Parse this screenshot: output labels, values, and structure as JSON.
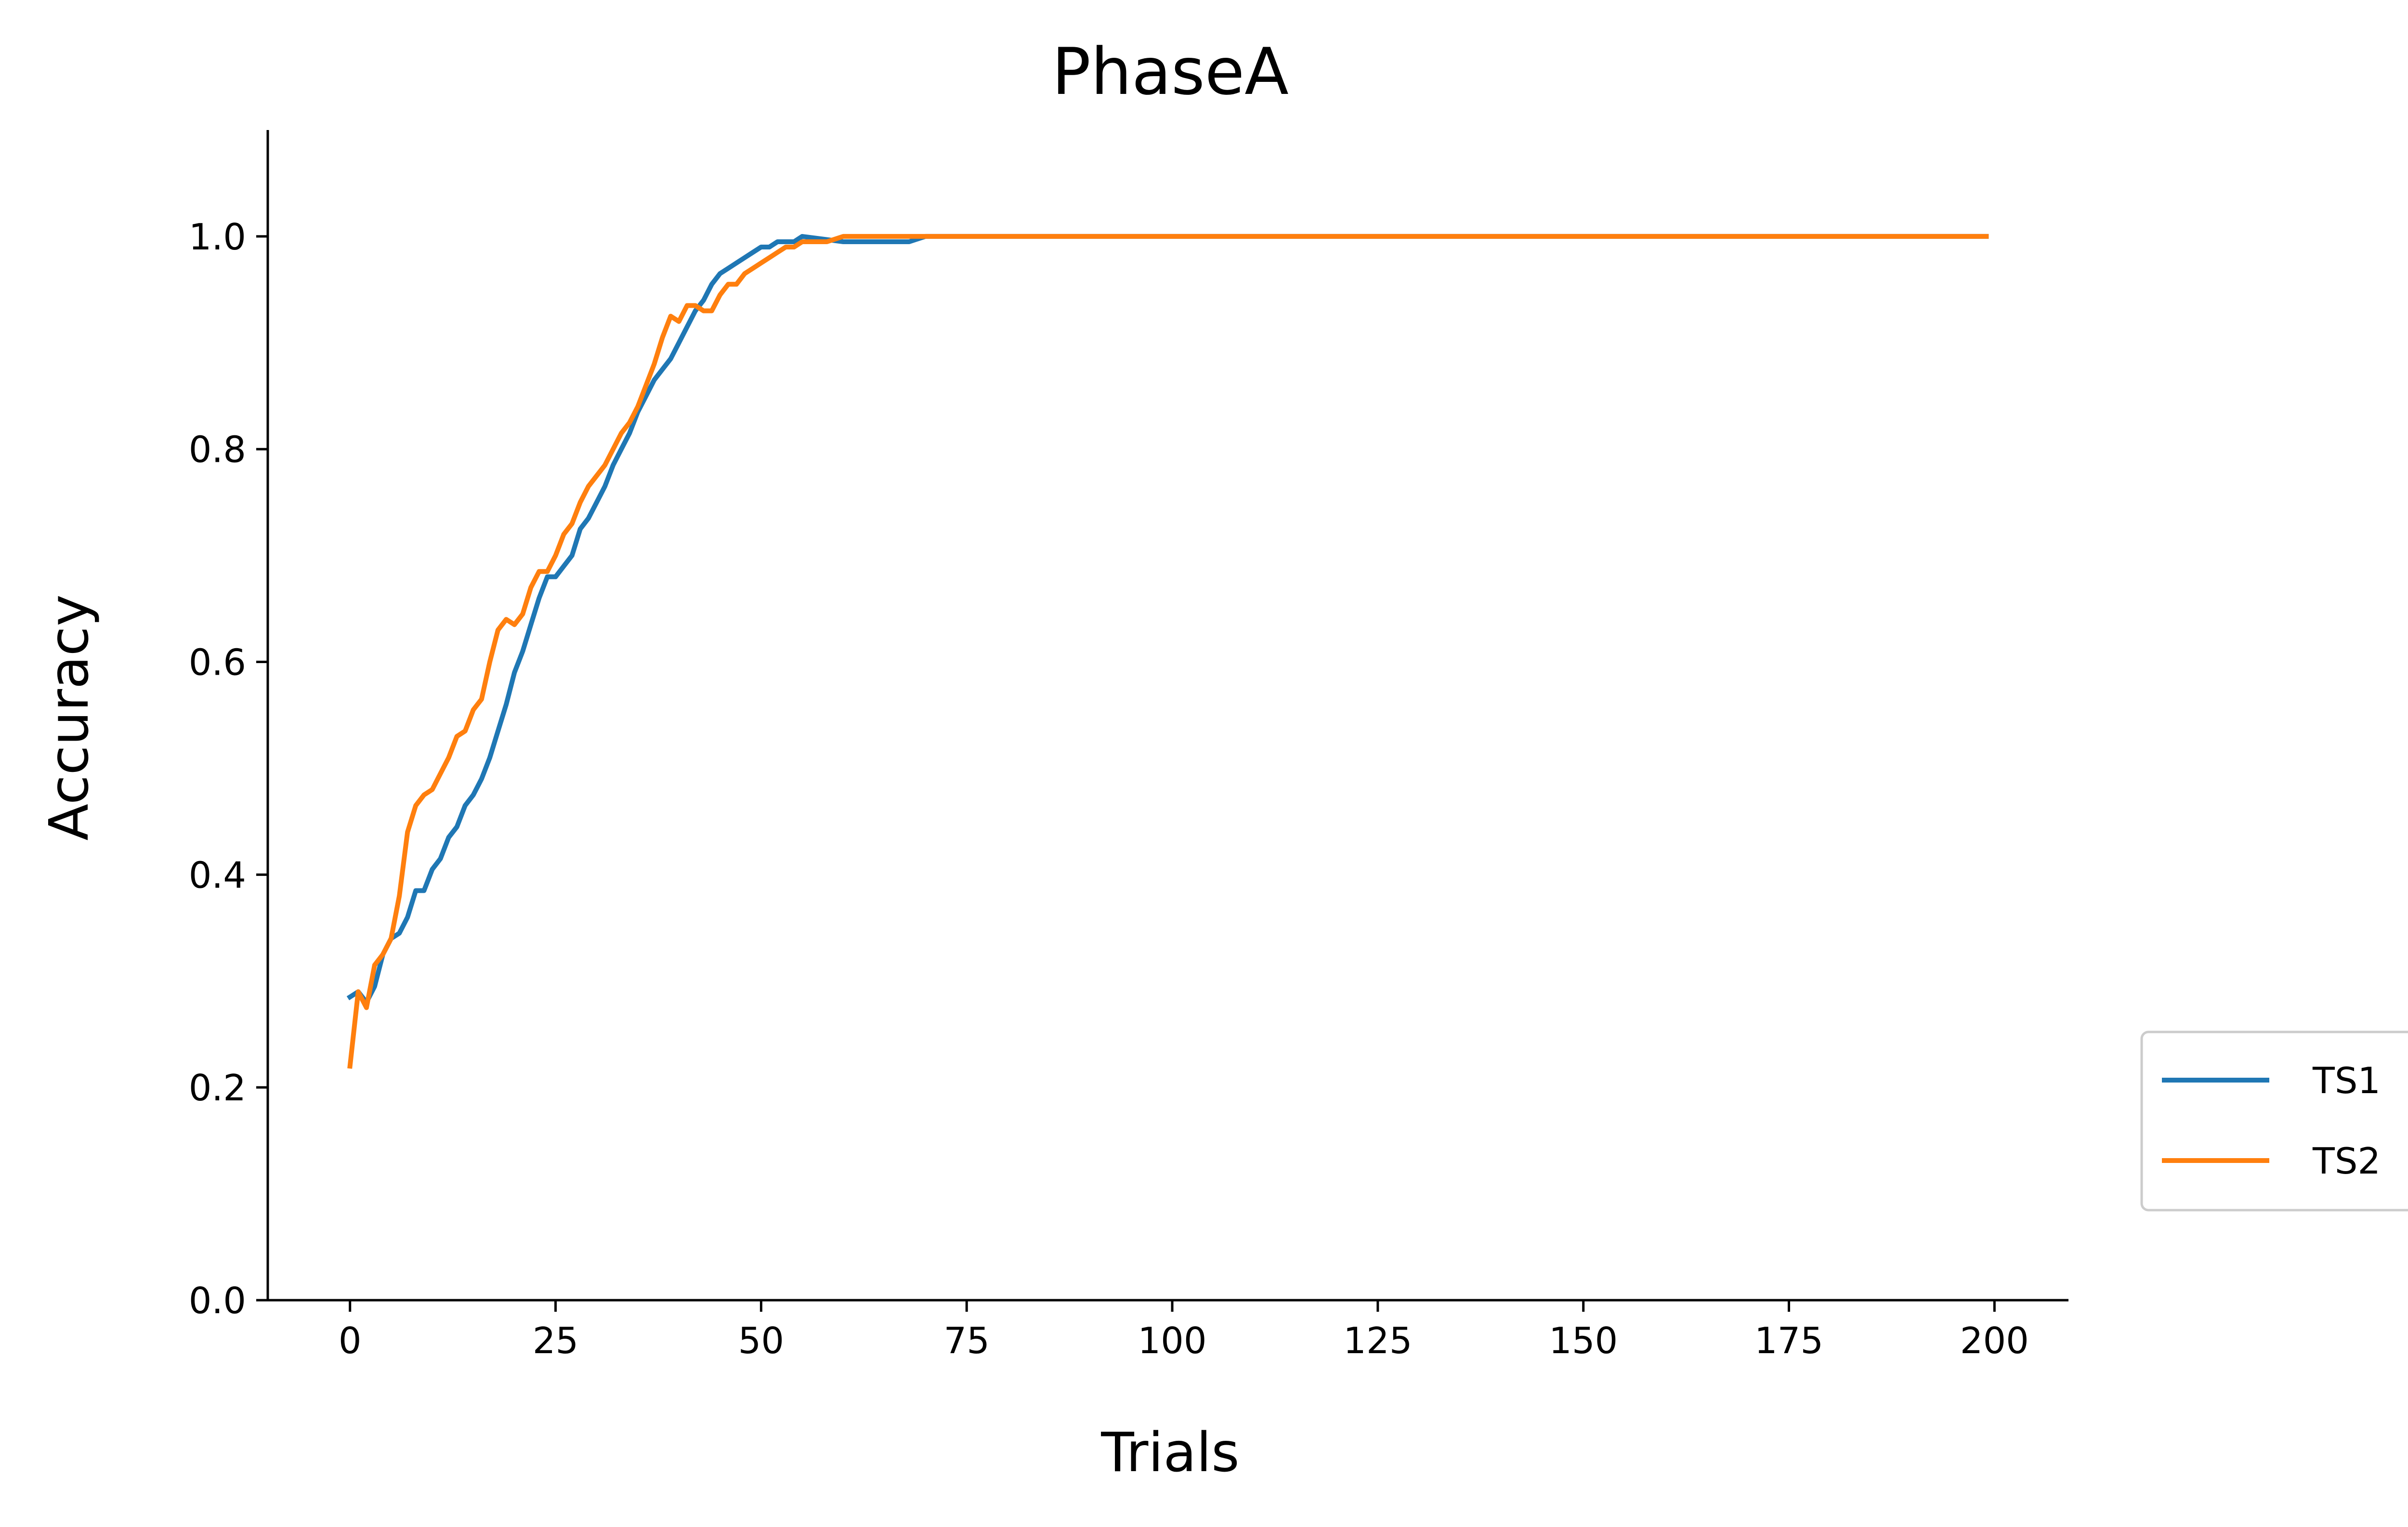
{
  "chart_data": {
    "type": "line",
    "title": "PhaseA",
    "xlabel": "Trials",
    "ylabel": "Accuracy",
    "xlim": [
      -10,
      209
    ],
    "ylim": [
      0,
      1.1
    ],
    "xticks": [
      0,
      25,
      50,
      75,
      100,
      125,
      150,
      175,
      200
    ],
    "yticks": [
      0.0,
      0.2,
      0.4,
      0.6,
      0.8,
      1.0
    ],
    "ytick_labels": [
      "0.0",
      "0.2",
      "0.4",
      "0.6",
      "0.8",
      "1.0"
    ],
    "grid": false,
    "legend_position": "right-lower, outside",
    "series": [
      {
        "name": "TS1",
        "color": "#1f77b4",
        "points": [
          [
            0,
            0.285
          ],
          [
            1,
            0.29
          ],
          [
            2,
            0.28
          ],
          [
            3,
            0.295
          ],
          [
            4,
            0.325
          ],
          [
            5,
            0.34
          ],
          [
            6,
            0.345
          ],
          [
            7,
            0.36
          ],
          [
            8,
            0.385
          ],
          [
            9,
            0.385
          ],
          [
            10,
            0.405
          ],
          [
            11,
            0.415
          ],
          [
            12,
            0.435
          ],
          [
            13,
            0.445
          ],
          [
            14,
            0.465
          ],
          [
            15,
            0.475
          ],
          [
            16,
            0.49
          ],
          [
            17,
            0.51
          ],
          [
            18,
            0.535
          ],
          [
            19,
            0.56
          ],
          [
            20,
            0.59
          ],
          [
            21,
            0.61
          ],
          [
            22,
            0.635
          ],
          [
            23,
            0.66
          ],
          [
            24,
            0.68
          ],
          [
            25,
            0.68
          ],
          [
            26,
            0.69
          ],
          [
            27,
            0.7
          ],
          [
            28,
            0.725
          ],
          [
            29,
            0.735
          ],
          [
            30,
            0.75
          ],
          [
            31,
            0.765
          ],
          [
            32,
            0.785
          ],
          [
            33,
            0.8
          ],
          [
            34,
            0.815
          ],
          [
            35,
            0.835
          ],
          [
            36,
            0.85
          ],
          [
            37,
            0.865
          ],
          [
            38,
            0.875
          ],
          [
            39,
            0.885
          ],
          [
            40,
            0.9
          ],
          [
            41,
            0.915
          ],
          [
            42,
            0.93
          ],
          [
            43,
            0.94
          ],
          [
            44,
            0.955
          ],
          [
            45,
            0.965
          ],
          [
            46,
            0.97
          ],
          [
            47,
            0.975
          ],
          [
            48,
            0.98
          ],
          [
            49,
            0.985
          ],
          [
            50,
            0.99
          ],
          [
            51,
            0.99
          ],
          [
            52,
            0.995
          ],
          [
            53,
            0.995
          ],
          [
            54,
            0.995
          ],
          [
            55,
            1.0
          ],
          [
            60,
            0.995
          ],
          [
            65,
            0.995
          ],
          [
            68,
            0.995
          ],
          [
            70,
            1.0
          ],
          [
            75,
            1.0
          ],
          [
            100,
            1.0
          ],
          [
            125,
            1.0
          ],
          [
            150,
            1.0
          ],
          [
            175,
            1.0
          ],
          [
            199,
            1.0
          ]
        ]
      },
      {
        "name": "TS2",
        "color": "#ff7f0e",
        "points": [
          [
            0,
            0.22
          ],
          [
            1,
            0.29
          ],
          [
            2,
            0.275
          ],
          [
            3,
            0.315
          ],
          [
            4,
            0.325
          ],
          [
            5,
            0.34
          ],
          [
            6,
            0.38
          ],
          [
            7,
            0.44
          ],
          [
            8,
            0.465
          ],
          [
            9,
            0.475
          ],
          [
            10,
            0.48
          ],
          [
            11,
            0.495
          ],
          [
            12,
            0.51
          ],
          [
            13,
            0.53
          ],
          [
            14,
            0.535
          ],
          [
            15,
            0.555
          ],
          [
            16,
            0.565
          ],
          [
            17,
            0.6
          ],
          [
            18,
            0.63
          ],
          [
            19,
            0.64
          ],
          [
            20,
            0.635
          ],
          [
            21,
            0.645
          ],
          [
            22,
            0.67
          ],
          [
            23,
            0.685
          ],
          [
            24,
            0.685
          ],
          [
            25,
            0.7
          ],
          [
            26,
            0.72
          ],
          [
            27,
            0.73
          ],
          [
            28,
            0.75
          ],
          [
            29,
            0.765
          ],
          [
            30,
            0.775
          ],
          [
            31,
            0.785
          ],
          [
            32,
            0.8
          ],
          [
            33,
            0.815
          ],
          [
            34,
            0.825
          ],
          [
            35,
            0.84
          ],
          [
            36,
            0.86
          ],
          [
            37,
            0.88
          ],
          [
            38,
            0.905
          ],
          [
            39,
            0.925
          ],
          [
            40,
            0.92
          ],
          [
            41,
            0.935
          ],
          [
            42,
            0.935
          ],
          [
            43,
            0.93
          ],
          [
            44,
            0.93
          ],
          [
            45,
            0.945
          ],
          [
            46,
            0.955
          ],
          [
            47,
            0.955
          ],
          [
            48,
            0.965
          ],
          [
            49,
            0.97
          ],
          [
            50,
            0.975
          ],
          [
            51,
            0.98
          ],
          [
            52,
            0.985
          ],
          [
            53,
            0.99
          ],
          [
            54,
            0.99
          ],
          [
            55,
            0.995
          ],
          [
            58,
            0.995
          ],
          [
            60,
            1.0
          ],
          [
            75,
            1.0
          ],
          [
            100,
            1.0
          ],
          [
            125,
            1.0
          ],
          [
            150,
            1.0
          ],
          [
            175,
            1.0
          ],
          [
            199,
            1.0
          ]
        ]
      }
    ]
  }
}
